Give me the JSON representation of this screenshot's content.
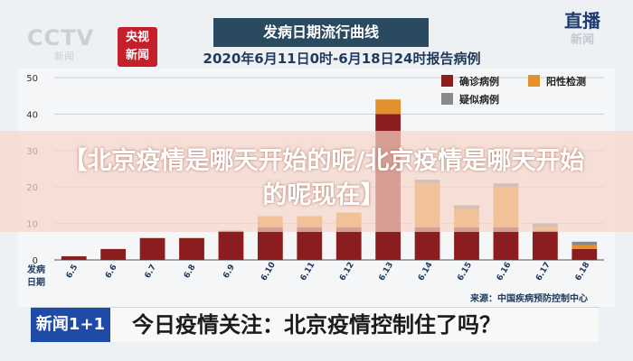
{
  "logos": {
    "cctv": "CCTV",
    "cctv_sub": "新闻",
    "news_badge_line1": "央视",
    "news_badge_line2": "新闻",
    "live_line1": "直播",
    "live_line2": "新闻"
  },
  "banner": "【北京疫情是哪天开始的呢/北京疫情是哪天开始的呢现在】",
  "ticker": {
    "logo": "新闻1+1",
    "text": "今日疫情关注：北京疫情控制住了吗？"
  },
  "source": "来源：中国疾病预防控制中心",
  "colors": {
    "confirmed": "#8b1d1f",
    "positive": "#e3912c",
    "suspected": "#8a8a8a"
  },
  "chart_data": {
    "type": "bar",
    "title": "发病日期流行曲线",
    "subtitle": "2020年6月11日0时-6月18日24时报告病例",
    "xlabel": "发病日期",
    "ylabel": "",
    "ylim": [
      0,
      50
    ],
    "yticks": [
      0,
      10,
      20,
      30,
      40,
      50
    ],
    "categories": [
      "6.5",
      "6.6",
      "6.7",
      "6.8",
      "6.9",
      "6.10",
      "6.11",
      "6.12",
      "6.13",
      "6.14",
      "6.15",
      "6.16",
      "6.17",
      "6.18"
    ],
    "series": [
      {
        "name": "确诊病例",
        "color": "#8b1d1f",
        "values": [
          1,
          3,
          6,
          6,
          8,
          9,
          9,
          9,
          40,
          9,
          9,
          9,
          8,
          3
        ]
      },
      {
        "name": "阳性检测",
        "color": "#e3912c",
        "values": [
          0,
          0,
          0,
          0,
          0,
          3,
          3,
          4,
          4,
          12,
          5,
          11,
          1,
          1
        ]
      },
      {
        "name": "疑似病例",
        "color": "#8a8a8a",
        "values": [
          0,
          0,
          0,
          0,
          0,
          0,
          0,
          0,
          0,
          1,
          1,
          1,
          1,
          1
        ]
      }
    ],
    "legend": "top-right",
    "stacked": true
  }
}
